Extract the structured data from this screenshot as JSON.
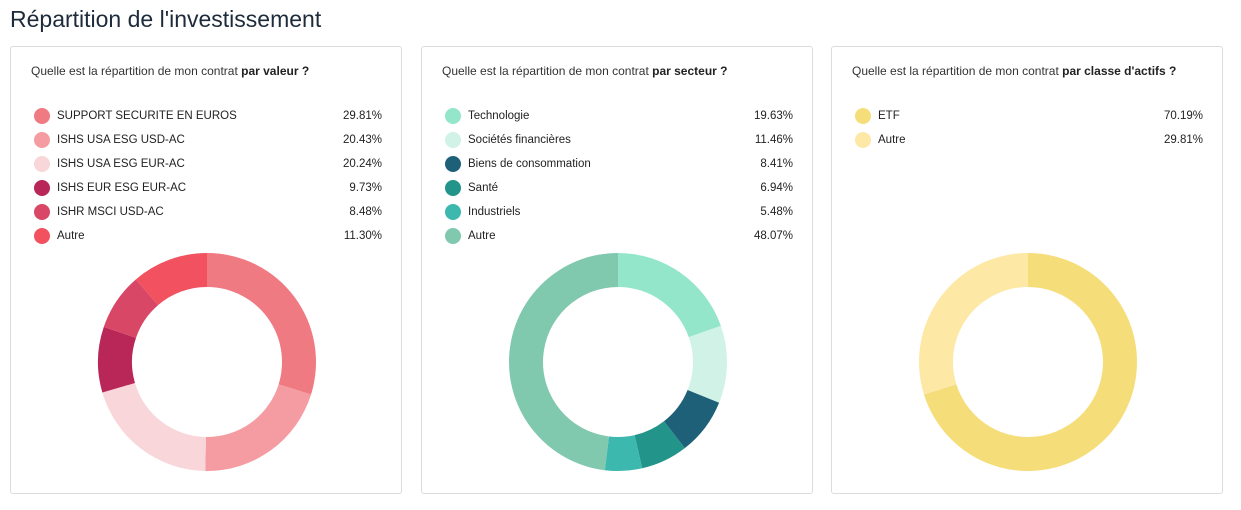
{
  "page_title": "Répartition de l'investissement",
  "chart_data": [
    {
      "type": "pie",
      "donut": true,
      "question": "Quelle est la répartition de mon contrat ",
      "question_bold": "par valeur ?",
      "items": [
        {
          "label": "SUPPORT SECURITE EN EUROS",
          "value": 29.81,
          "display": "29.81%",
          "color": "#f07a82"
        },
        {
          "label": "ISHS USA ESG USD-AC",
          "value": 20.43,
          "display": "20.43%",
          "color": "#f59ca2"
        },
        {
          "label": "ISHS USA ESG EUR-AC",
          "value": 20.24,
          "display": "20.24%",
          "color": "#f8d6d9"
        },
        {
          "label": "ISHS EUR ESG EUR-AC",
          "value": 9.73,
          "display": "9.73%",
          "color": "#b82757"
        },
        {
          "label": "ISHR MSCI USD-AC",
          "value": 8.48,
          "display": "8.48%",
          "color": "#d94767"
        },
        {
          "label": "Autre",
          "value": 11.3,
          "display": "11.30%",
          "color": "#f2525f"
        }
      ]
    },
    {
      "type": "pie",
      "donut": true,
      "question": "Quelle est la répartition de mon contrat ",
      "question_bold": "par secteur ?",
      "items": [
        {
          "label": "Technologie",
          "value": 19.63,
          "display": "19.63%",
          "color": "#94e6cb"
        },
        {
          "label": "Sociétés financières",
          "value": 11.46,
          "display": "11.46%",
          "color": "#d0f2e7"
        },
        {
          "label": "Biens de consommation",
          "value": 8.41,
          "display": "8.41%",
          "color": "#1f6079"
        },
        {
          "label": "Santé",
          "value": 6.94,
          "display": "6.94%",
          "color": "#22948a"
        },
        {
          "label": "Industriels",
          "value": 5.48,
          "display": "5.48%",
          "color": "#3db8af"
        },
        {
          "label": "Autre",
          "value": 48.07,
          "display": "48.07%",
          "color": "#80c8ae"
        }
      ]
    },
    {
      "type": "pie",
      "donut": true,
      "question": "Quelle est la répartition de mon contrat ",
      "question_bold": "par classe d'actifs ?",
      "items": [
        {
          "label": "ETF",
          "value": 70.19,
          "display": "70.19%",
          "color": "#f5dd7a"
        },
        {
          "label": "Autre",
          "value": 29.81,
          "display": "29.81%",
          "color": "#fde8a6"
        }
      ]
    }
  ]
}
